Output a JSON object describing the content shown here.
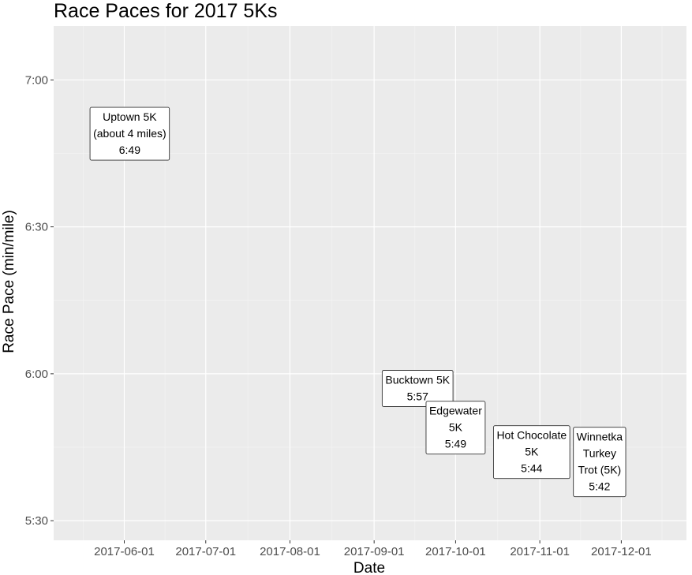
{
  "chart_data": {
    "type": "scatter",
    "title": "Race Paces for 2017 5Ks",
    "xlabel": "Date",
    "ylabel": "Race Pace (min/mile)",
    "x_ticks": [
      "2017-06-01",
      "2017-07-01",
      "2017-08-01",
      "2017-09-01",
      "2017-10-01",
      "2017-11-01",
      "2017-12-01"
    ],
    "y_ticks": [
      "5:30",
      "6:00",
      "6:30",
      "7:00"
    ],
    "xlim": [
      "2017-05-06",
      "2017-12-25"
    ],
    "ylim": [
      "5:26",
      "7:11"
    ],
    "grid": true,
    "points": [
      {
        "date": "2017-06-03",
        "pace": "6:49",
        "label": [
          "Uptown 5K",
          "(about 4 miles)",
          "6:49"
        ]
      },
      {
        "date": "2017-09-17",
        "pace": "5:57",
        "label": [
          "Bucktown 5K",
          "5:57"
        ]
      },
      {
        "date": "2017-10-01",
        "pace": "5:49",
        "label": [
          "Edgewater",
          "5K",
          "5:49"
        ]
      },
      {
        "date": "2017-10-29",
        "pace": "5:44",
        "label": [
          "Hot Chocolate",
          "5K",
          "5:44"
        ]
      },
      {
        "date": "2017-11-23",
        "pace": "5:42",
        "label": [
          "Winnetka",
          "Turkey",
          "Trot (5K)",
          "5:42"
        ]
      }
    ]
  }
}
